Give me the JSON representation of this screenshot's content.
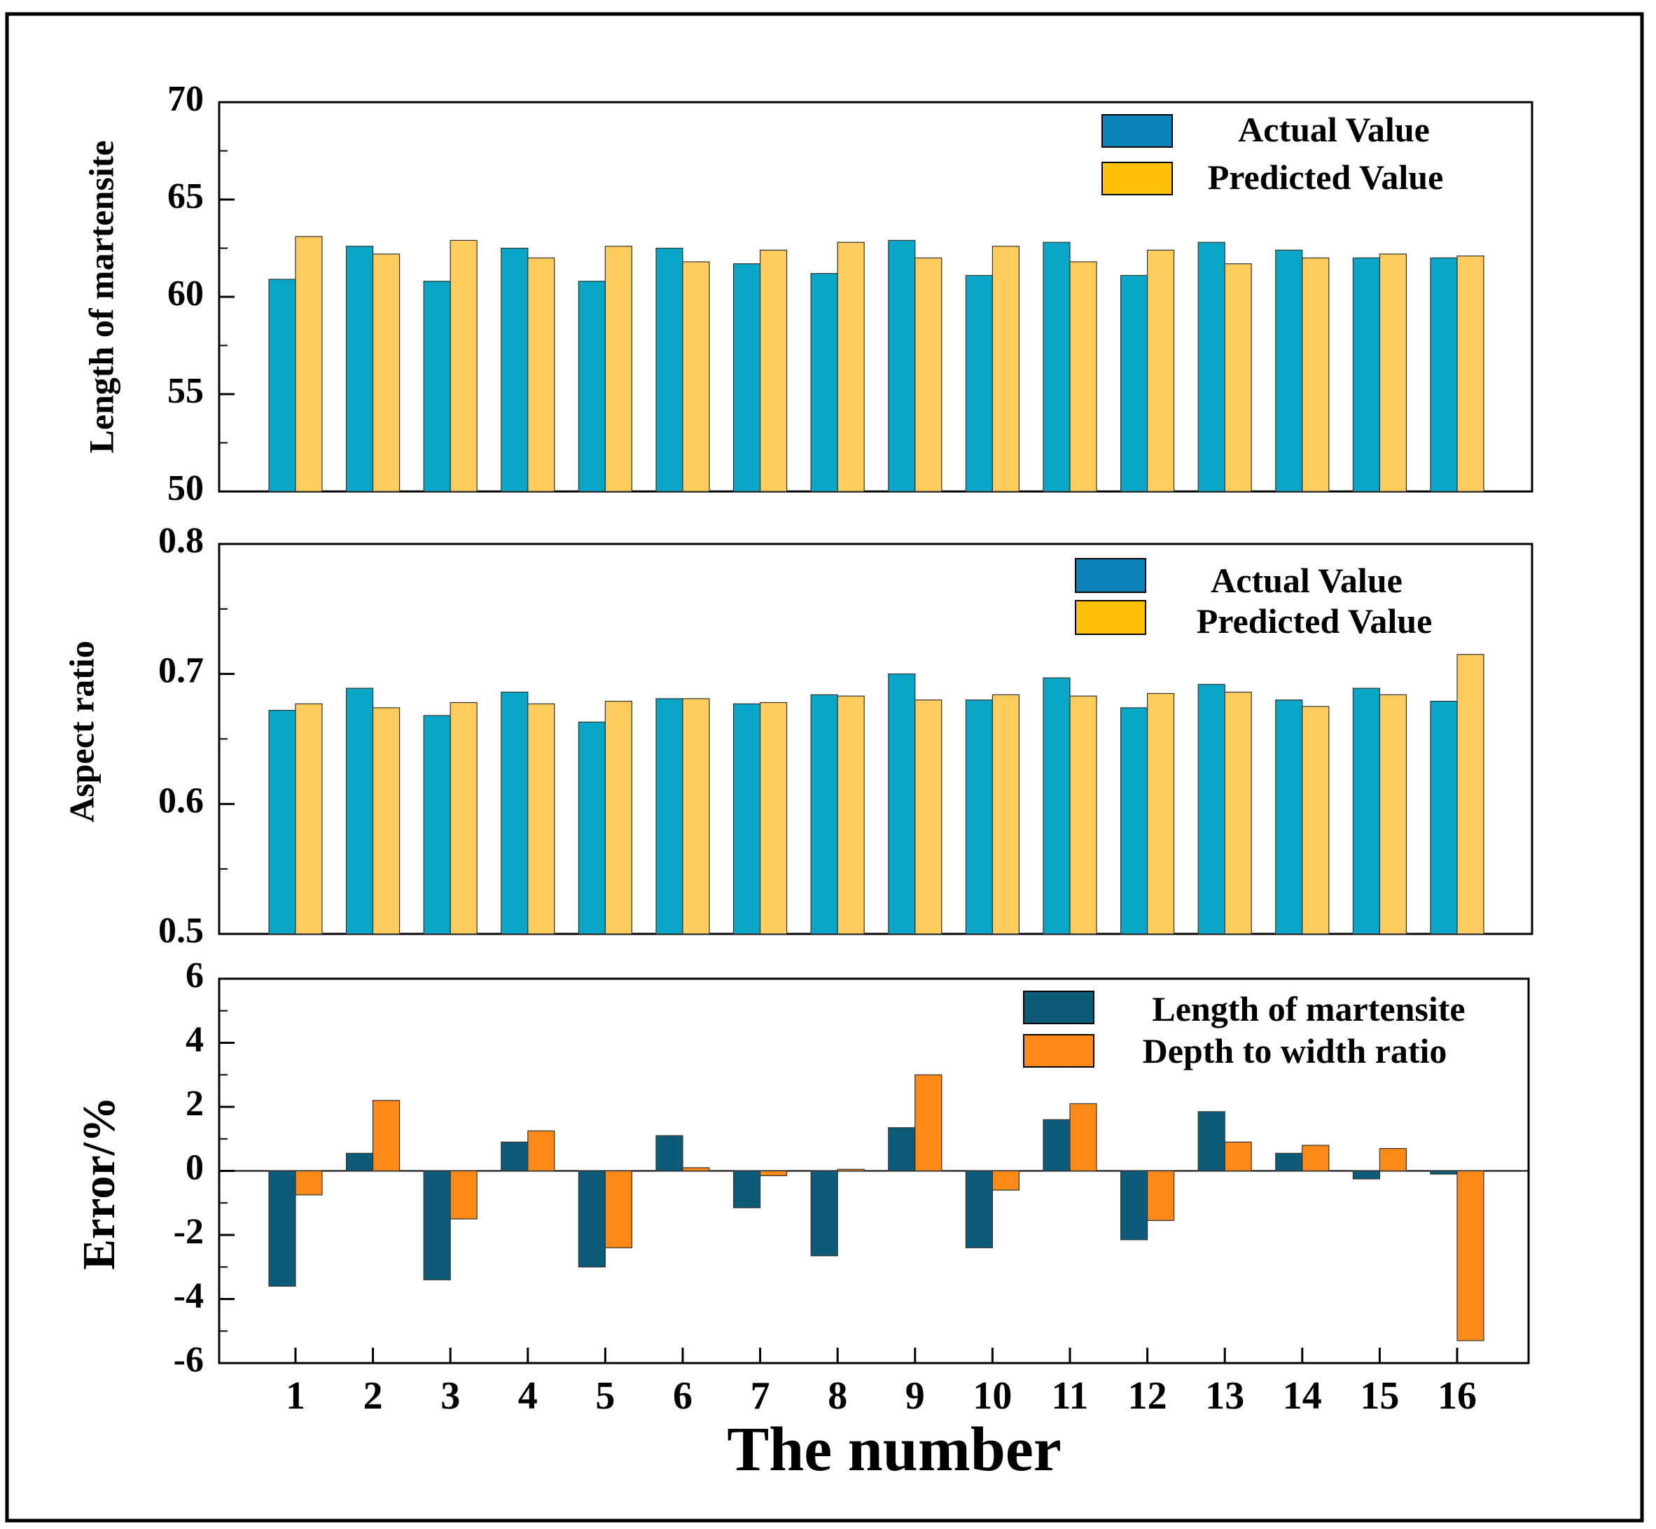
{
  "colors": {
    "actual": "#0aa6c8",
    "predicted": "#fdcc5d",
    "legend_actual": "#0b82b8",
    "legend_predicted": "#ffc107",
    "error_length": "#0b5b79",
    "error_depth": "#fd8a18"
  },
  "x_title": "The number",
  "categories": [
    "1",
    "2",
    "3",
    "4",
    "5",
    "6",
    "7",
    "8",
    "9",
    "10",
    "11",
    "12",
    "13",
    "14",
    "15",
    "16"
  ],
  "chart_data": [
    {
      "type": "bar",
      "ylabel": "Length of martensite",
      "ylim": [
        50,
        70
      ],
      "yticks": [
        "50",
        "55",
        "60",
        "65",
        "70"
      ],
      "legend": "top-right",
      "series": [
        {
          "name": "Actual Value",
          "values": [
            60.9,
            62.6,
            60.8,
            62.5,
            60.8,
            62.5,
            61.7,
            61.2,
            62.9,
            61.1,
            62.8,
            61.1,
            62.8,
            62.4,
            62.0,
            62.0
          ]
        },
        {
          "name": "Predicted Value",
          "values": [
            63.1,
            62.2,
            62.9,
            62.0,
            62.6,
            61.8,
            62.4,
            62.8,
            62.0,
            62.6,
            61.8,
            62.4,
            61.7,
            62.0,
            62.2,
            62.1
          ]
        }
      ]
    },
    {
      "type": "bar",
      "ylabel": "Aspect ratio",
      "ylim": [
        0.5,
        0.8
      ],
      "yticks": [
        "0.5",
        "0.6",
        "0.7",
        "0.8"
      ],
      "legend": "top-right",
      "series": [
        {
          "name": "Actual Value",
          "values": [
            0.672,
            0.689,
            0.668,
            0.686,
            0.663,
            0.681,
            0.677,
            0.684,
            0.7,
            0.68,
            0.697,
            0.674,
            0.692,
            0.68,
            0.689,
            0.679
          ]
        },
        {
          "name": "Predicted Value",
          "values": [
            0.677,
            0.674,
            0.678,
            0.677,
            0.679,
            0.681,
            0.678,
            0.683,
            0.68,
            0.684,
            0.683,
            0.685,
            0.686,
            0.675,
            0.684,
            0.715
          ]
        }
      ]
    },
    {
      "type": "bar",
      "ylabel": "Error/%",
      "ylim": [
        -6,
        6
      ],
      "yticks": [
        "-6",
        "-4",
        "-2",
        "0",
        "2",
        "4",
        "6"
      ],
      "legend": "top-right",
      "series": [
        {
          "name": "Length of martensite",
          "values": [
            -3.6,
            0.55,
            -3.4,
            0.9,
            -3.0,
            1.1,
            -1.15,
            -2.65,
            1.35,
            -2.4,
            1.6,
            -2.15,
            1.85,
            0.55,
            -0.25,
            -0.1
          ]
        },
        {
          "name": "Depth to width ratio",
          "values": [
            -0.75,
            2.2,
            -1.5,
            1.25,
            -2.4,
            0.1,
            -0.15,
            0.05,
            3.0,
            -0.6,
            2.1,
            -1.55,
            0.9,
            0.8,
            0.7,
            -5.3
          ]
        }
      ]
    }
  ]
}
